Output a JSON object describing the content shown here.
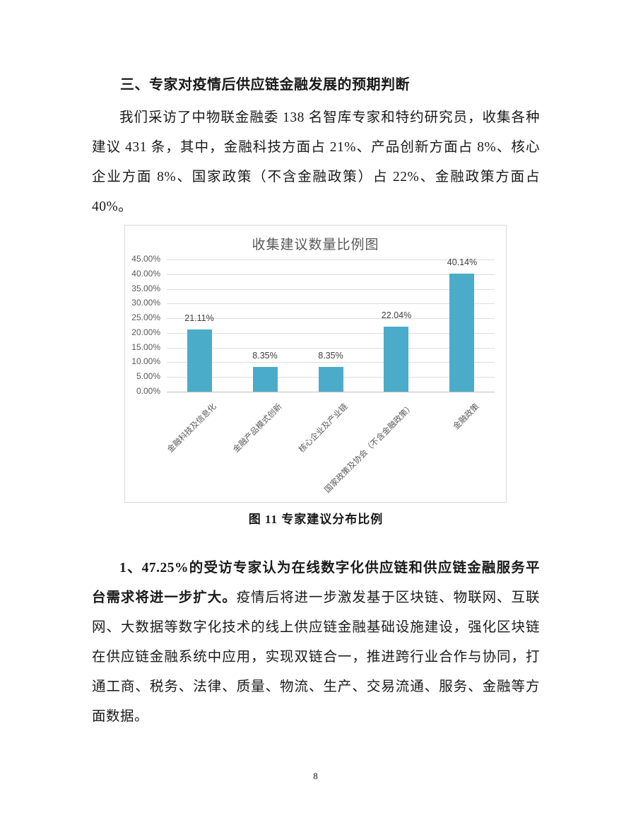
{
  "heading": "三、专家对疫情后供应链金融发展的预期判断",
  "paragraph1": "我们采访了中物联金融委 138 名智库专家和特约研究员，收集各种建议 431 条，其中，金融科技方面占 21%、产品创新方面占 8%、核心企业方面 8%、国家政策（不含金融政策）占 22%、金融政策方面占 40%。",
  "figure": {
    "caption": "图 11 专家建议分布比例"
  },
  "paragraph2": {
    "bold": "1、47.25%的受访专家认为在线数字化供应链和供应链金融服务平台需求将进一步扩大。",
    "regular": "疫情后将进一步激发基于区块链、物联网、互联网、大数据等数字化技术的线上供应链金融基础设施建设，强化区块链在供应链金融系统中应用，实现双链合一，推进跨行业合作与协同，打通工商、税务、法律、质量、物流、生产、交易流通、服务、金融等方面数据。"
  },
  "page_number": "8",
  "chart_data": {
    "type": "bar",
    "title": "收集建议数量比例图",
    "categories": [
      "金融科技及信息化",
      "金融产品模式创新",
      "核心企业及产业链",
      "国家政策及协会（不含金融政策）",
      "金融政策"
    ],
    "values": [
      21.11,
      8.35,
      8.35,
      22.04,
      40.14
    ],
    "data_labels": [
      "21.11%",
      "8.35%",
      "8.35%",
      "22.04%",
      "40.14%"
    ],
    "xlabel": "",
    "ylabel": "",
    "ylim": [
      0,
      45
    ],
    "ytick_step": 5,
    "ytick_labels": [
      "45.00%",
      "40.00%",
      "35.00%",
      "30.00%",
      "25.00%",
      "20.00%",
      "15.00%",
      "10.00%",
      "5.00%",
      "0.00%"
    ],
    "grid": true,
    "legend": "none",
    "bar_color": "#4AACC8",
    "label_color": "#595959",
    "data_label_color": "#404040",
    "gridline_color": "#dedede"
  }
}
